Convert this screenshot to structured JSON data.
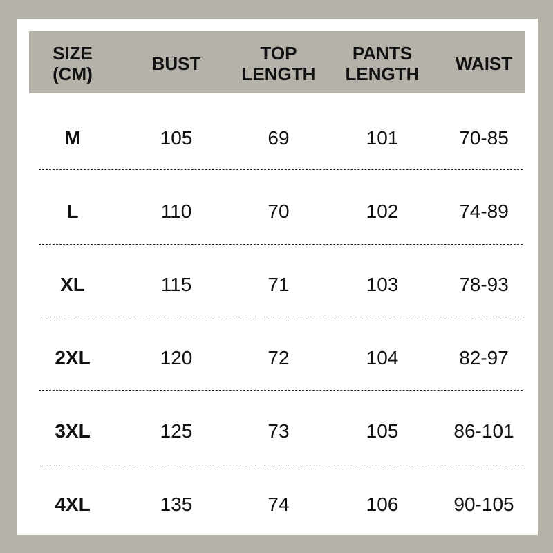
{
  "headers": [
    [
      "SIZE",
      "(CM)"
    ],
    [
      "BUST",
      ""
    ],
    [
      "TOP",
      "LENGTH"
    ],
    [
      "PANTS",
      "LENGTH"
    ],
    [
      "WAIST",
      ""
    ]
  ],
  "rows": [
    [
      "M",
      "105",
      "69",
      "101",
      "70-85"
    ],
    [
      "L",
      "110",
      "70",
      "102",
      "74-89"
    ],
    [
      "XL",
      "115",
      "71",
      "103",
      "78-93"
    ],
    [
      "2XL",
      "120",
      "72",
      "104",
      "82-97"
    ],
    [
      "3XL",
      "125",
      "73",
      "105",
      "86-101"
    ],
    [
      "4XL",
      "135",
      "74",
      "106",
      "90-105"
    ]
  ],
  "colors": {
    "background": "#b4b1a9",
    "header": "#b5b2aa",
    "panel": "#ffffff"
  }
}
